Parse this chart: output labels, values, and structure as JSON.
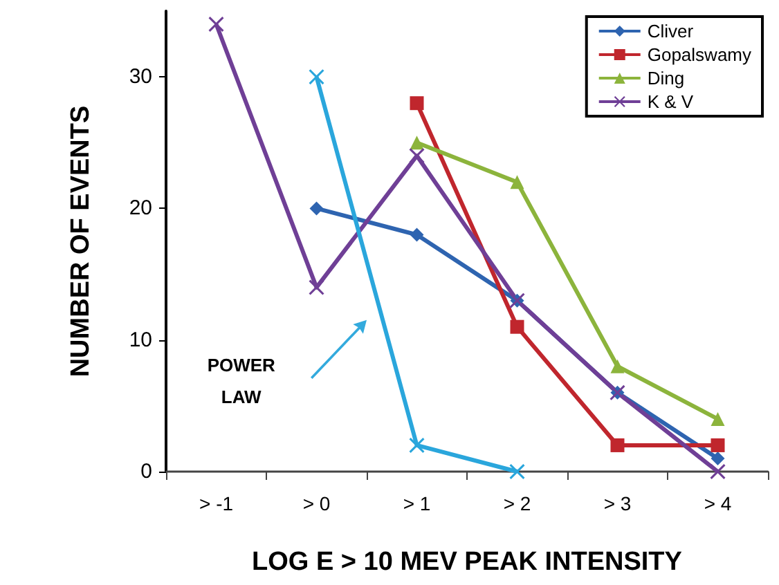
{
  "chart_data": {
    "type": "line",
    "xlabel": "LOG E > 10 MEV PEAK INTENSITY",
    "ylabel": "NUMBER OF EVENTS",
    "categories": [
      "> -1",
      "> 0",
      "> 1",
      "> 2",
      "> 3",
      "> 4"
    ],
    "series": [
      {
        "name": "Cliver",
        "color": "#2e64b0",
        "marker": "diamond",
        "values": [
          null,
          20,
          18,
          13,
          6,
          1
        ]
      },
      {
        "name": "Gopalswamy",
        "color": "#c0262d",
        "marker": "square",
        "values": [
          null,
          null,
          28,
          11,
          2,
          2
        ]
      },
      {
        "name": "Ding",
        "color": "#8cb43c",
        "marker": "triangle",
        "values": [
          null,
          null,
          25,
          22,
          8,
          4
        ]
      },
      {
        "name": "K & V",
        "color": "#6f3f96",
        "marker": "cross",
        "values": [
          34,
          14,
          24,
          13,
          6,
          0
        ]
      },
      {
        "color": "#2aa6dc",
        "marker": "cross",
        "values": [
          null,
          30,
          2,
          0,
          null,
          null
        ]
      }
    ],
    "annotations": [
      "POWER LAW"
    ],
    "ylim": [
      0,
      35
    ],
    "yticks": [
      0,
      10,
      20,
      30
    ],
    "grid": false,
    "legend": "top right"
  }
}
